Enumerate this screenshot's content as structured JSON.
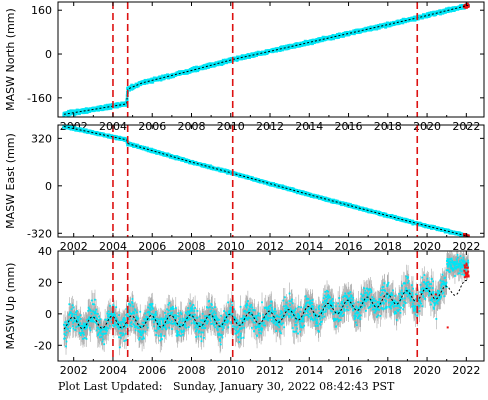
{
  "footer": {
    "label": "Plot Last Updated:",
    "timestamp": "Sunday, January 30, 2022 08:42:43 PST"
  },
  "colors": {
    "data": "#00e5f5",
    "error": "#aaaaaa",
    "model": "#000000",
    "event_line": "#dd1111",
    "recent": "#ee1111",
    "frame": "#000000"
  },
  "chart_data": [
    {
      "type": "scatter",
      "ylabel": "MASW North (mm)",
      "xlim": [
        2001.2,
        2022.9
      ],
      "ylim": [
        -230,
        190
      ],
      "yticks": [
        -160,
        0,
        160
      ],
      "xticks": [
        2002,
        2004,
        2006,
        2008,
        2010,
        2012,
        2014,
        2016,
        2018,
        2020,
        2022
      ],
      "event_lines": [
        2004.0,
        2004.75,
        2010.1,
        2019.5
      ],
      "model": {
        "x": [
          2001.5,
          2004.7,
          2004.75,
          2005.5,
          2008.0,
          2010.1,
          2012.0,
          2016.0,
          2019.5,
          2022.1
        ],
        "y": [
          -220,
          -182,
          -128,
          -105,
          -60,
          -20,
          10,
          75,
          132,
          178
        ]
      }
    },
    {
      "type": "scatter",
      "ylabel": "MASW East (mm)",
      "xlim": [
        2001.2,
        2022.9
      ],
      "ylim": [
        -345,
        410
      ],
      "yticks": [
        -320,
        0,
        320
      ],
      "xticks": [
        2002,
        2004,
        2006,
        2008,
        2010,
        2012,
        2014,
        2016,
        2018,
        2020,
        2022
      ],
      "event_lines": [
        2004.0,
        2004.75,
        2010.1,
        2019.5
      ],
      "model": {
        "x": [
          2001.5,
          2004.7,
          2004.75,
          2008.0,
          2010.1,
          2014.0,
          2019.5,
          2022.1
        ],
        "y": [
          400,
          310,
          285,
          160,
          85,
          -60,
          -255,
          -340
        ]
      }
    },
    {
      "type": "scatter",
      "ylabel": "MASW Up (mm)",
      "xlim": [
        2001.2,
        2022.9
      ],
      "ylim": [
        -30,
        40
      ],
      "yticks": [
        -20,
        0,
        20,
        40
      ],
      "xticks": [
        2002,
        2004,
        2006,
        2008,
        2010,
        2012,
        2014,
        2016,
        2018,
        2020,
        2022
      ],
      "event_lines": [
        2004.0,
        2004.75,
        2010.1,
        2019.5
      ],
      "trend": {
        "x": [
          2001.5,
          2005.0,
          2010.0,
          2013.0,
          2016.0,
          2019.0,
          2021.0,
          2022.1
        ],
        "y": [
          -6,
          -5,
          -4,
          -1,
          5,
          11,
          14,
          18
        ]
      },
      "seasonal_amplitude_mm": 5,
      "scatter_sd_mm": 6
    }
  ]
}
